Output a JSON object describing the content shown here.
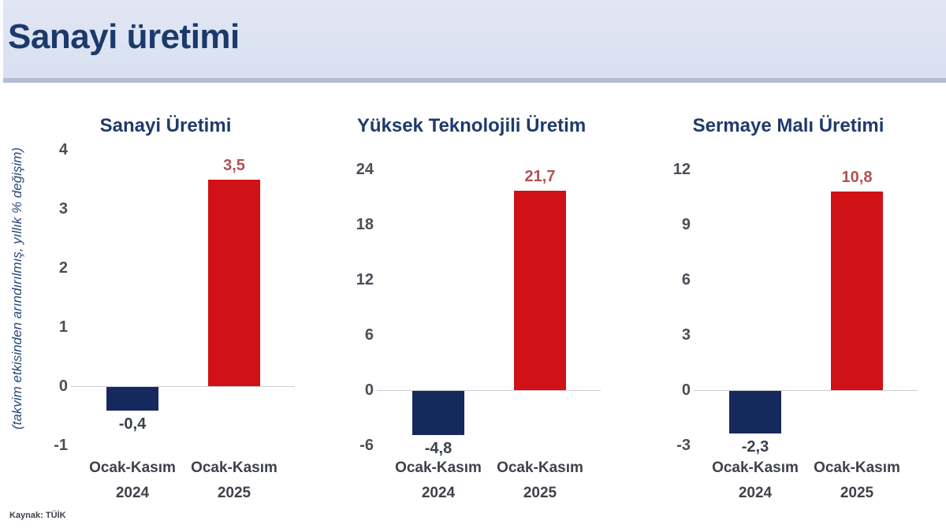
{
  "header": {
    "title": "Sanayi üretimi"
  },
  "axis_note": "(takvim etkisinden arındırılmış, yıllık % değişim)",
  "source": "Kaynak: TÜİK",
  "colors": {
    "bar_positive": "#d01116",
    "bar_negative": "#16295c",
    "value_label_positive": "#b25151",
    "value_label_negative": "#3b4150",
    "title_navy": "#1f3a6d",
    "header_bg": "#dce3f2"
  },
  "chart_data": [
    {
      "type": "bar",
      "title": "Sanayi Üretimi",
      "categories": [
        "Ocak-Kasım\n2024",
        "Ocak-Kasım\n2025"
      ],
      "values": [
        -0.4,
        3.5
      ],
      "value_labels": [
        "-0,4",
        "3,5"
      ],
      "ticks": [
        4,
        3,
        2,
        1,
        0,
        -1
      ],
      "ylim": [
        -1,
        4
      ],
      "ylabel": "(takvim etkisinden arındırılmış, yıllık % değişim)",
      "grid": false,
      "legend": "none"
    },
    {
      "type": "bar",
      "title": "Yüksek Teknolojili Üretim",
      "categories": [
        "Ocak-Kasım\n2024",
        "Ocak-Kasım\n2025"
      ],
      "values": [
        -4.8,
        21.7
      ],
      "value_labels": [
        "-4,8",
        "21,7"
      ],
      "ticks": [
        24,
        18,
        12,
        6,
        0,
        -6
      ],
      "ylim": [
        -6,
        24
      ],
      "ylabel": "(takvim etkisinden arındırılmış, yıllık % değişim)",
      "grid": false,
      "legend": "none"
    },
    {
      "type": "bar",
      "title": "Sermaye Malı Üretimi",
      "categories": [
        "Ocak-Kasım\n2024",
        "Ocak-Kasım\n2025"
      ],
      "values": [
        -2.3,
        10.8
      ],
      "value_labels": [
        "-2,3",
        "10,8"
      ],
      "ticks": [
        12,
        9,
        6,
        3,
        0,
        -3
      ],
      "ylim": [
        -3,
        12
      ],
      "ylabel": "(takvim etkisinden arındırılmış, yıllık % değişim)",
      "grid": false,
      "legend": "none"
    }
  ]
}
